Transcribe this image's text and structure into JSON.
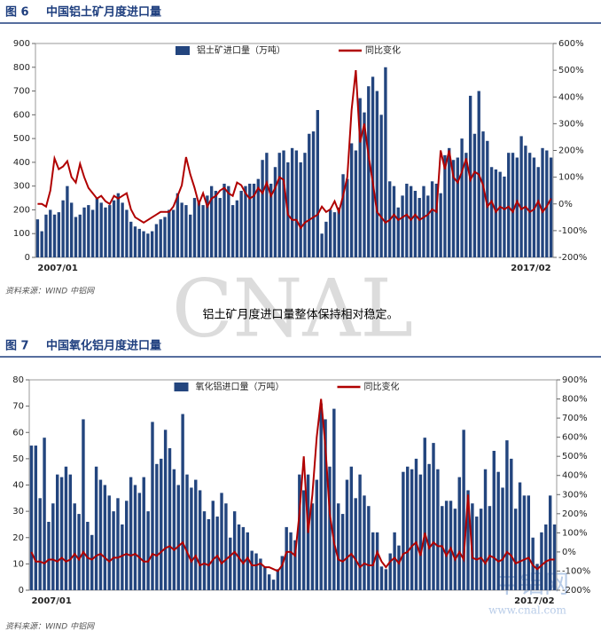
{
  "note": "铝土矿月度进口量整体保持相对稳定。",
  "watermark": [
    "CNAL",
    "中铝网",
    "www.cnal.com"
  ],
  "chart_data": [
    {
      "type": "bar_line",
      "figure": "图 6",
      "title": "中国铝土矿月度进口量",
      "source": "资料来源：WIND    中铝网",
      "categories": [
        "2007/01",
        null,
        null,
        null,
        null,
        null,
        null,
        null,
        null,
        null,
        null,
        null,
        null,
        null,
        null,
        null,
        null,
        null,
        null,
        null,
        null,
        null,
        null,
        null,
        null,
        null,
        null,
        null,
        null,
        null,
        null,
        null,
        null,
        null,
        null,
        null,
        null,
        null,
        null,
        null,
        null,
        null,
        null,
        null,
        null,
        null,
        null,
        null,
        null,
        null,
        null,
        null,
        null,
        null,
        null,
        null,
        null,
        null,
        null,
        null,
        null,
        null,
        null,
        null,
        null,
        null,
        null,
        null,
        null,
        null,
        null,
        null,
        null,
        null,
        null,
        null,
        null,
        null,
        null,
        null,
        null,
        null,
        null,
        null,
        null,
        null,
        null,
        null,
        null,
        null,
        null,
        null,
        null,
        null,
        null,
        null,
        null,
        null,
        null,
        null,
        null,
        null,
        null,
        null,
        null,
        null,
        null,
        null,
        null,
        null,
        null,
        null,
        null,
        null,
        null,
        null,
        null,
        null,
        null,
        null,
        null,
        "2017/02"
      ],
      "series": [
        {
          "name": "铝土矿进口量（万吨）",
          "color": "#23457e",
          "values": [
            160,
            110,
            180,
            200,
            180,
            190,
            240,
            300,
            230,
            170,
            180,
            210,
            220,
            200,
            250,
            230,
            210,
            220,
            240,
            270,
            230,
            200,
            150,
            130,
            120,
            110,
            100,
            110,
            140,
            160,
            170,
            200,
            200,
            270,
            230,
            220,
            180,
            250,
            240,
            220,
            260,
            300,
            280,
            250,
            310,
            300,
            220,
            240,
            280,
            300,
            310,
            310,
            330,
            410,
            440,
            310,
            380,
            440,
            450,
            400,
            460,
            450,
            400,
            440,
            520,
            530,
            620,
            100,
            150,
            200,
            190,
            210,
            350,
            330,
            480,
            450,
            670,
            610,
            720,
            760,
            700,
            600,
            800,
            320,
            300,
            210,
            260,
            310,
            300,
            280,
            250,
            300,
            260,
            320,
            310,
            270,
            430,
            460,
            410,
            420,
            500,
            440,
            680,
            520,
            700,
            530,
            490,
            380,
            370,
            360,
            340,
            440,
            440,
            420,
            510,
            470,
            440,
            420,
            380,
            460,
            450,
            420
          ]
        },
        {
          "name": "同比变化",
          "color": "#b00000",
          "axis": "y2",
          "values": [
            0,
            0,
            -10,
            50,
            170,
            130,
            140,
            160,
            100,
            80,
            150,
            100,
            60,
            40,
            20,
            30,
            10,
            0,
            30,
            20,
            30,
            40,
            -20,
            -50,
            -60,
            -70,
            -60,
            -50,
            -40,
            -30,
            -30,
            -30,
            -10,
            30,
            70,
            175,
            110,
            60,
            0,
            40,
            -10,
            20,
            30,
            50,
            60,
            40,
            30,
            80,
            70,
            40,
            20,
            30,
            60,
            40,
            80,
            30,
            60,
            100,
            90,
            -40,
            -60,
            -60,
            -90,
            -70,
            -60,
            -50,
            -40,
            -10,
            -30,
            -20,
            10,
            -30,
            30,
            100,
            350,
            500,
            230,
            300,
            180,
            80,
            -30,
            -50,
            -70,
            -60,
            -40,
            -60,
            -50,
            -40,
            -60,
            -40,
            -60,
            -50,
            -40,
            -20,
            -30,
            200,
            130,
            200,
            100,
            80,
            120,
            170,
            90,
            120,
            110,
            70,
            -10,
            10,
            -30,
            -10,
            -20,
            -10,
            -30,
            10,
            -20,
            -10,
            -30,
            -20,
            10,
            -30,
            -10,
            20
          ]
        }
      ],
      "ylim": [
        0,
        900
      ],
      "yticks": [
        0,
        100,
        200,
        300,
        400,
        500,
        600,
        700,
        800,
        900
      ],
      "y2lim": [
        -200,
        600
      ],
      "y2ticks": [
        {
          "value": -200,
          "label": "-200%"
        },
        {
          "value": -100,
          "label": "-100%"
        },
        {
          "value": 0,
          "label": "0%"
        },
        {
          "value": 100,
          "label": "100%"
        },
        {
          "value": 200,
          "label": "200%"
        },
        {
          "value": 300,
          "label": "300%"
        },
        {
          "value": 400,
          "label": "400%"
        },
        {
          "value": 500,
          "label": "500%"
        },
        {
          "value": 600,
          "label": "600%"
        }
      ],
      "legend": "top"
    },
    {
      "type": "bar_line",
      "figure": "图 7",
      "title": "中国氧化铝月度进口量",
      "source": "资料来源：WIND    中铝网",
      "categories": [
        "2007/01",
        null,
        null,
        null,
        null,
        null,
        null,
        null,
        null,
        null,
        null,
        null,
        null,
        null,
        null,
        null,
        null,
        null,
        null,
        null,
        null,
        null,
        null,
        null,
        null,
        null,
        null,
        null,
        null,
        null,
        null,
        null,
        null,
        null,
        null,
        null,
        null,
        null,
        null,
        null,
        null,
        null,
        null,
        null,
        null,
        null,
        null,
        null,
        null,
        null,
        null,
        null,
        null,
        null,
        null,
        null,
        null,
        null,
        null,
        null,
        null,
        null,
        null,
        null,
        null,
        null,
        null,
        null,
        null,
        null,
        null,
        null,
        null,
        null,
        null,
        null,
        null,
        null,
        null,
        null,
        null,
        null,
        null,
        null,
        null,
        null,
        null,
        null,
        null,
        null,
        null,
        null,
        null,
        null,
        null,
        null,
        null,
        null,
        null,
        null,
        null,
        null,
        null,
        null,
        null,
        null,
        null,
        null,
        null,
        null,
        null,
        null,
        null,
        null,
        null,
        null,
        null,
        null,
        null,
        null,
        null,
        "2017/02"
      ],
      "series": [
        {
          "name": "氧化铝进口量（万吨）",
          "color": "#23457e",
          "values": [
            55,
            55,
            35,
            58,
            26,
            33,
            44,
            43,
            47,
            44,
            33,
            29,
            65,
            26,
            21,
            47,
            42,
            40,
            36,
            30,
            35,
            25,
            34,
            43,
            40,
            37,
            43,
            30,
            64,
            48,
            50,
            61,
            54,
            46,
            40,
            67,
            44,
            39,
            42,
            38,
            30,
            27,
            34,
            28,
            37,
            33,
            20,
            30,
            25,
            24,
            22,
            15,
            14,
            12,
            9,
            6,
            4,
            8,
            13,
            24,
            22,
            19,
            44,
            38,
            44,
            33,
            42,
            71,
            65,
            47,
            69,
            33,
            29,
            42,
            47,
            35,
            44,
            36,
            32,
            22,
            22,
            9,
            8,
            14,
            22,
            17,
            45,
            47,
            46,
            50,
            44,
            58,
            48,
            56,
            46,
            32,
            34,
            34,
            31,
            43,
            61,
            38,
            33,
            28,
            31,
            46,
            32,
            53,
            45,
            39,
            57,
            50,
            31,
            41,
            36,
            36,
            20,
            10,
            22,
            25,
            36,
            25
          ]
        },
        {
          "name": "同比变化",
          "color": "#b00000",
          "axis": "y2",
          "values": [
            0,
            -50,
            -50,
            -60,
            -40,
            -40,
            -50,
            -30,
            -50,
            -40,
            -10,
            -40,
            0,
            -30,
            -40,
            -20,
            -10,
            -30,
            -50,
            -30,
            -30,
            -20,
            -10,
            -20,
            -10,
            -30,
            -50,
            -50,
            -10,
            -20,
            0,
            20,
            30,
            10,
            30,
            50,
            0,
            -50,
            -20,
            -70,
            -60,
            -70,
            -40,
            -20,
            -60,
            -40,
            -20,
            0,
            -30,
            -60,
            -30,
            -70,
            -70,
            -60,
            -80,
            -80,
            -90,
            -100,
            -70,
            0,
            0,
            -20,
            200,
            500,
            100,
            300,
            600,
            800,
            550,
            200,
            50,
            -40,
            -50,
            -30,
            -10,
            -40,
            -80,
            -60,
            -70,
            -70,
            0,
            -50,
            -80,
            -50,
            -30,
            -60,
            -10,
            0,
            30,
            50,
            -20,
            100,
            20,
            50,
            30,
            30,
            -20,
            20,
            -40,
            0,
            -40,
            300,
            -30,
            -40,
            -30,
            -60,
            -20,
            -30,
            -50,
            -40,
            0,
            -20,
            -60,
            -50,
            -40,
            -30,
            -70,
            -90,
            -70,
            -50,
            -40,
            -40
          ]
        }
      ],
      "ylim": [
        0,
        80
      ],
      "yticks": [
        0,
        10,
        20,
        30,
        40,
        50,
        60,
        70,
        80
      ],
      "y2lim": [
        -200,
        900
      ],
      "y2ticks": [
        {
          "value": -200,
          "label": "-200%"
        },
        {
          "value": -100,
          "label": "-100%"
        },
        {
          "value": 0,
          "label": "0%"
        },
        {
          "value": 100,
          "label": "100%"
        },
        {
          "value": 200,
          "label": "200%"
        },
        {
          "value": 300,
          "label": "300%"
        },
        {
          "value": 400,
          "label": "400%"
        },
        {
          "value": 500,
          "label": "500%"
        },
        {
          "value": 600,
          "label": "600%"
        },
        {
          "value": 700,
          "label": "700%"
        },
        {
          "value": 800,
          "label": "800%"
        },
        {
          "value": 900,
          "label": "900%"
        }
      ],
      "legend": "top"
    }
  ]
}
